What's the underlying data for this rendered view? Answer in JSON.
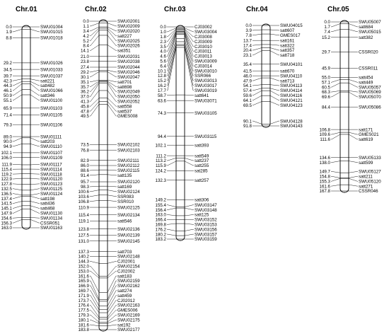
{
  "chromosomes": [
    {
      "name": "Chr.01",
      "bottom_cM": 163.0,
      "loci": [
        {
          "pos": "0.0",
          "marker": "SWU01004"
        },
        {
          "pos": "1.9",
          "marker": "SWU01015"
        },
        {
          "pos": "8.8",
          "marker": "SWU01018"
        },
        {
          "pos": "29.2",
          "marker": "SWU01026"
        },
        {
          "pos": "34.5",
          "marker": "SWU01033"
        },
        {
          "pos": "39.7",
          "marker": "SWU01037"
        },
        {
          "pos": "42.3",
          "marker": "satt221"
        },
        {
          "pos": "44.3",
          "marker": "satt482"
        },
        {
          "pos": "46.1",
          "marker": "SWU01066"
        },
        {
          "pos": "50.9",
          "marker": "satt346"
        },
        {
          "pos": "55.1",
          "marker": "SWU01100"
        },
        {
          "pos": "65.9",
          "marker": "SWU01103"
        },
        {
          "pos": "71.4",
          "marker": "SWU01105"
        },
        {
          "pos": "79.3",
          "marker": "SWU01106"
        },
        {
          "pos": "89.0",
          "marker": "SWU01111"
        },
        {
          "pos": "90.0",
          "marker": "satt203"
        },
        {
          "pos": "94.9",
          "marker": "SWU01110"
        },
        {
          "pos": "102.1",
          "marker": "SWU01107"
        },
        {
          "pos": "106.0",
          "marker": "SWU01109"
        },
        {
          "pos": "111.9",
          "marker": "SWU01117"
        },
        {
          "pos": "115.4",
          "marker": "SWU01114"
        },
        {
          "pos": "119.2",
          "marker": "SWU01118"
        },
        {
          "pos": "122.9",
          "marker": "SWU01120"
        },
        {
          "pos": "127.8",
          "marker": "SWU01123"
        },
        {
          "pos": "132.5",
          "marker": "SWU01125"
        },
        {
          "pos": "136.5",
          "marker": "SWU01124"
        },
        {
          "pos": "137.4",
          "marker": "satt198"
        },
        {
          "pos": "141.5",
          "marker": "satt436"
        },
        {
          "pos": "145.1",
          "marker": "satt468"
        },
        {
          "pos": "147.9",
          "marker": "SWU01130"
        },
        {
          "pos": "154.6",
          "marker": "SWU01134"
        },
        {
          "pos": "156.3",
          "marker": "CSSR051"
        },
        {
          "pos": "163.0",
          "marker": "SWU01163"
        }
      ]
    },
    {
      "name": "Chr.02",
      "bottom_cM": 183.8,
      "loci": [
        {
          "pos": "0.0",
          "marker": "SWU02001"
        },
        {
          "pos": "1.1",
          "marker": "SWU02009"
        },
        {
          "pos": "3.4",
          "marker": "SWU02020"
        },
        {
          "pos": "4.2",
          "marker": "satt227"
        },
        {
          "pos": "5.2",
          "marker": "SWU02025"
        },
        {
          "pos": "8.4",
          "marker": "SWU02026"
        },
        {
          "pos": "14.1",
          "marker": "sat351"
        },
        {
          "pos": "21.0",
          "marker": "SWU02031"
        },
        {
          "pos": "23.8",
          "marker": "SWU02038"
        },
        {
          "pos": "27.4",
          "marker": "SWU02044"
        },
        {
          "pos": "29.2",
          "marker": "SWU02046"
        },
        {
          "pos": "30.1",
          "marker": "SWU02047"
        },
        {
          "pos": "35.1",
          "marker": "satt701"
        },
        {
          "pos": "35.7",
          "marker": "satt698"
        },
        {
          "pos": "36.2",
          "marker": "SWU02049"
        },
        {
          "pos": "37.0",
          "marker": "SWU02050"
        },
        {
          "pos": "41.3",
          "marker": "SWU02052"
        },
        {
          "pos": "45.8",
          "marker": "satt558"
        },
        {
          "pos": "47.8",
          "marker": "satt537"
        },
        {
          "pos": "49.5",
          "marker": "GMES008"
        },
        {
          "pos": "73.5",
          "marker": "SWU02102"
        },
        {
          "pos": "76.8",
          "marker": "SWU02103"
        },
        {
          "pos": "82.9",
          "marker": "SWU02111"
        },
        {
          "pos": "86.0",
          "marker": "SWU02112"
        },
        {
          "pos": "88.6",
          "marker": "SWU02115"
        },
        {
          "pos": "91.4",
          "marker": "satt135"
        },
        {
          "pos": "95.7",
          "marker": "SWU02120"
        },
        {
          "pos": "98.3",
          "marker": "satt169"
        },
        {
          "pos": "100.6",
          "marker": "SWU02124"
        },
        {
          "pos": "103.6",
          "marker": "SSR083"
        },
        {
          "pos": "106.8",
          "marker": "SSR010"
        },
        {
          "pos": "110.9",
          "marker": "SWU02125"
        },
        {
          "pos": "115.4",
          "marker": "SWU02134"
        },
        {
          "pos": "119.1",
          "marker": "satt546"
        },
        {
          "pos": "123.8",
          "marker": "SWU02136"
        },
        {
          "pos": "127.5",
          "marker": "SWU02139"
        },
        {
          "pos": "131.0",
          "marker": "SWU02145"
        },
        {
          "pos": "137.3",
          "marker": "satt703"
        },
        {
          "pos": "140.2",
          "marker": "SWU02148"
        },
        {
          "pos": "144.3",
          "marker": "CJ02001"
        },
        {
          "pos": "152.0",
          "marker": "SWU02154"
        },
        {
          "pos": "153.0",
          "marker": "CJ02002"
        },
        {
          "pos": "161.6",
          "marker": "satt183"
        },
        {
          "pos": "165.9",
          "marker": "SWU02159"
        },
        {
          "pos": "166.9",
          "marker": "SWU02162"
        },
        {
          "pos": "169.7",
          "marker": "satt274"
        },
        {
          "pos": "171.9",
          "marker": "satt459"
        },
        {
          "pos": "173.7",
          "marker": "CJ02012"
        },
        {
          "pos": "176.4",
          "marker": "SWU02163"
        },
        {
          "pos": "177.5",
          "marker": "GMES006"
        },
        {
          "pos": "179.3",
          "marker": "SWU02169"
        },
        {
          "pos": "180.1",
          "marker": "SWU02175"
        },
        {
          "pos": "181.6",
          "marker": "sat192"
        },
        {
          "pos": "183.8",
          "marker": "SWU02177"
        }
      ]
    },
    {
      "name": "Chr.03",
      "bottom_cM": 183.2,
      "loci": [
        {
          "pos": "0.0",
          "marker": "CJ03002"
        },
        {
          "pos": "1.0",
          "marker": "SWU03004"
        },
        {
          "pos": "1.8",
          "marker": "CJ03008"
        },
        {
          "pos": "2.3",
          "marker": "CJ03009"
        },
        {
          "pos": "3.5",
          "marker": "CJ03010"
        },
        {
          "pos": "4.0",
          "marker": "CJ03011"
        },
        {
          "pos": "4.6",
          "marker": "CJ03013"
        },
        {
          "pos": "5.6",
          "marker": "SWU03009"
        },
        {
          "pos": "6.4",
          "marker": "CJ03014"
        },
        {
          "pos": "10.1",
          "marker": "SWU03010"
        },
        {
          "pos": "12.8",
          "marker": "SSR066"
        },
        {
          "pos": "15.2",
          "marker": "SWU03013"
        },
        {
          "pos": "16.2",
          "marker": "SWU03017"
        },
        {
          "pos": "17.7",
          "marker": "SWU03019"
        },
        {
          "pos": "58.7",
          "marker": "satt641"
        },
        {
          "pos": "63.6",
          "marker": "SWU03071"
        },
        {
          "pos": "74.3",
          "marker": "SWU03105"
        },
        {
          "pos": "94.4",
          "marker": "SWU03115"
        },
        {
          "pos": "102.1",
          "marker": "satt393"
        },
        {
          "pos": "111.2",
          "marker": "satt549"
        },
        {
          "pos": "113.2",
          "marker": "satt237"
        },
        {
          "pos": "115.9",
          "marker": "satt255"
        },
        {
          "pos": "124.2",
          "marker": "sat285"
        },
        {
          "pos": "132.3",
          "marker": "satt257"
        },
        {
          "pos": "149.2",
          "marker": "satt306"
        },
        {
          "pos": "155.4",
          "marker": "SWU03147"
        },
        {
          "pos": "156.4",
          "marker": "SWU03148"
        },
        {
          "pos": "163.0",
          "marker": "satt125"
        },
        {
          "pos": "166.4",
          "marker": "SWU03152"
        },
        {
          "pos": "169.8",
          "marker": "SWU03153"
        },
        {
          "pos": "176.2",
          "marker": "SWU03156"
        },
        {
          "pos": "180.2",
          "marker": "SWU03157"
        },
        {
          "pos": "183.2",
          "marker": "SWU03159"
        }
      ]
    },
    {
      "name": "Chr.04",
      "bottom_cM": 91.8,
      "loci": [
        {
          "pos": "0.0",
          "marker": "SWU04015"
        },
        {
          "pos": "3.9",
          "marker": "satt607"
        },
        {
          "pos": "7.8",
          "marker": "GMES017"
        },
        {
          "pos": "13.7",
          "marker": "satt161"
        },
        {
          "pos": "17.4",
          "marker": "satt322"
        },
        {
          "pos": "20.4",
          "marker": "satt357"
        },
        {
          "pos": "23.1",
          "marker": "satt718"
        },
        {
          "pos": "35.4",
          "marker": "SWU04101"
        },
        {
          "pos": "41.5",
          "marker": "satt670"
        },
        {
          "pos": "46.0",
          "marker": "SWU04110"
        },
        {
          "pos": "47.9",
          "marker": "satt713"
        },
        {
          "pos": "54.1",
          "marker": "SWU04113"
        },
        {
          "pos": "57.4",
          "marker": "SWU04114"
        },
        {
          "pos": "59.6",
          "marker": "SWU04116"
        },
        {
          "pos": "64.1",
          "marker": "SWU04121"
        },
        {
          "pos": "69.5",
          "marker": "SWU04123"
        },
        {
          "pos": "90.1",
          "marker": "SWU04128"
        },
        {
          "pos": "91.8",
          "marker": "SWU04143"
        }
      ]
    },
    {
      "name": "Chr.05",
      "bottom_cM": 167.8,
      "loci": [
        {
          "pos": "0.0",
          "marker": "SWU05007"
        },
        {
          "pos": "1.7",
          "marker": "satt684"
        },
        {
          "pos": "7.4",
          "marker": "SWU05015"
        },
        {
          "pos": "15.2",
          "marker": "satt382"
        },
        {
          "pos": "29.7",
          "marker": "CSSR020"
        },
        {
          "pos": "45.9",
          "marker": "CSSR011"
        },
        {
          "pos": "55.0",
          "marker": "satt454"
        },
        {
          "pos": "57.1",
          "marker": "satt449"
        },
        {
          "pos": "60.5",
          "marker": "SWU05057"
        },
        {
          "pos": "68.3",
          "marker": "SWU05069"
        },
        {
          "pos": "69.6",
          "marker": "SWU05070"
        },
        {
          "pos": "84.4",
          "marker": "SWU05086"
        },
        {
          "pos": "106.8",
          "marker": "satt171"
        },
        {
          "pos": "109.6",
          "marker": "GMES021"
        },
        {
          "pos": "111.6",
          "marker": "satt619"
        },
        {
          "pos": "134.6",
          "marker": "SWU05133"
        },
        {
          "pos": "138.0",
          "marker": "satt599"
        },
        {
          "pos": "149.7",
          "marker": "SWU05127"
        },
        {
          "pos": "154.8",
          "marker": "satt211"
        },
        {
          "pos": "155.3",
          "marker": "SWU05120"
        },
        {
          "pos": "161.6",
          "marker": "satt271"
        },
        {
          "pos": "167.8",
          "marker": "CSSR046"
        }
      ]
    }
  ]
}
